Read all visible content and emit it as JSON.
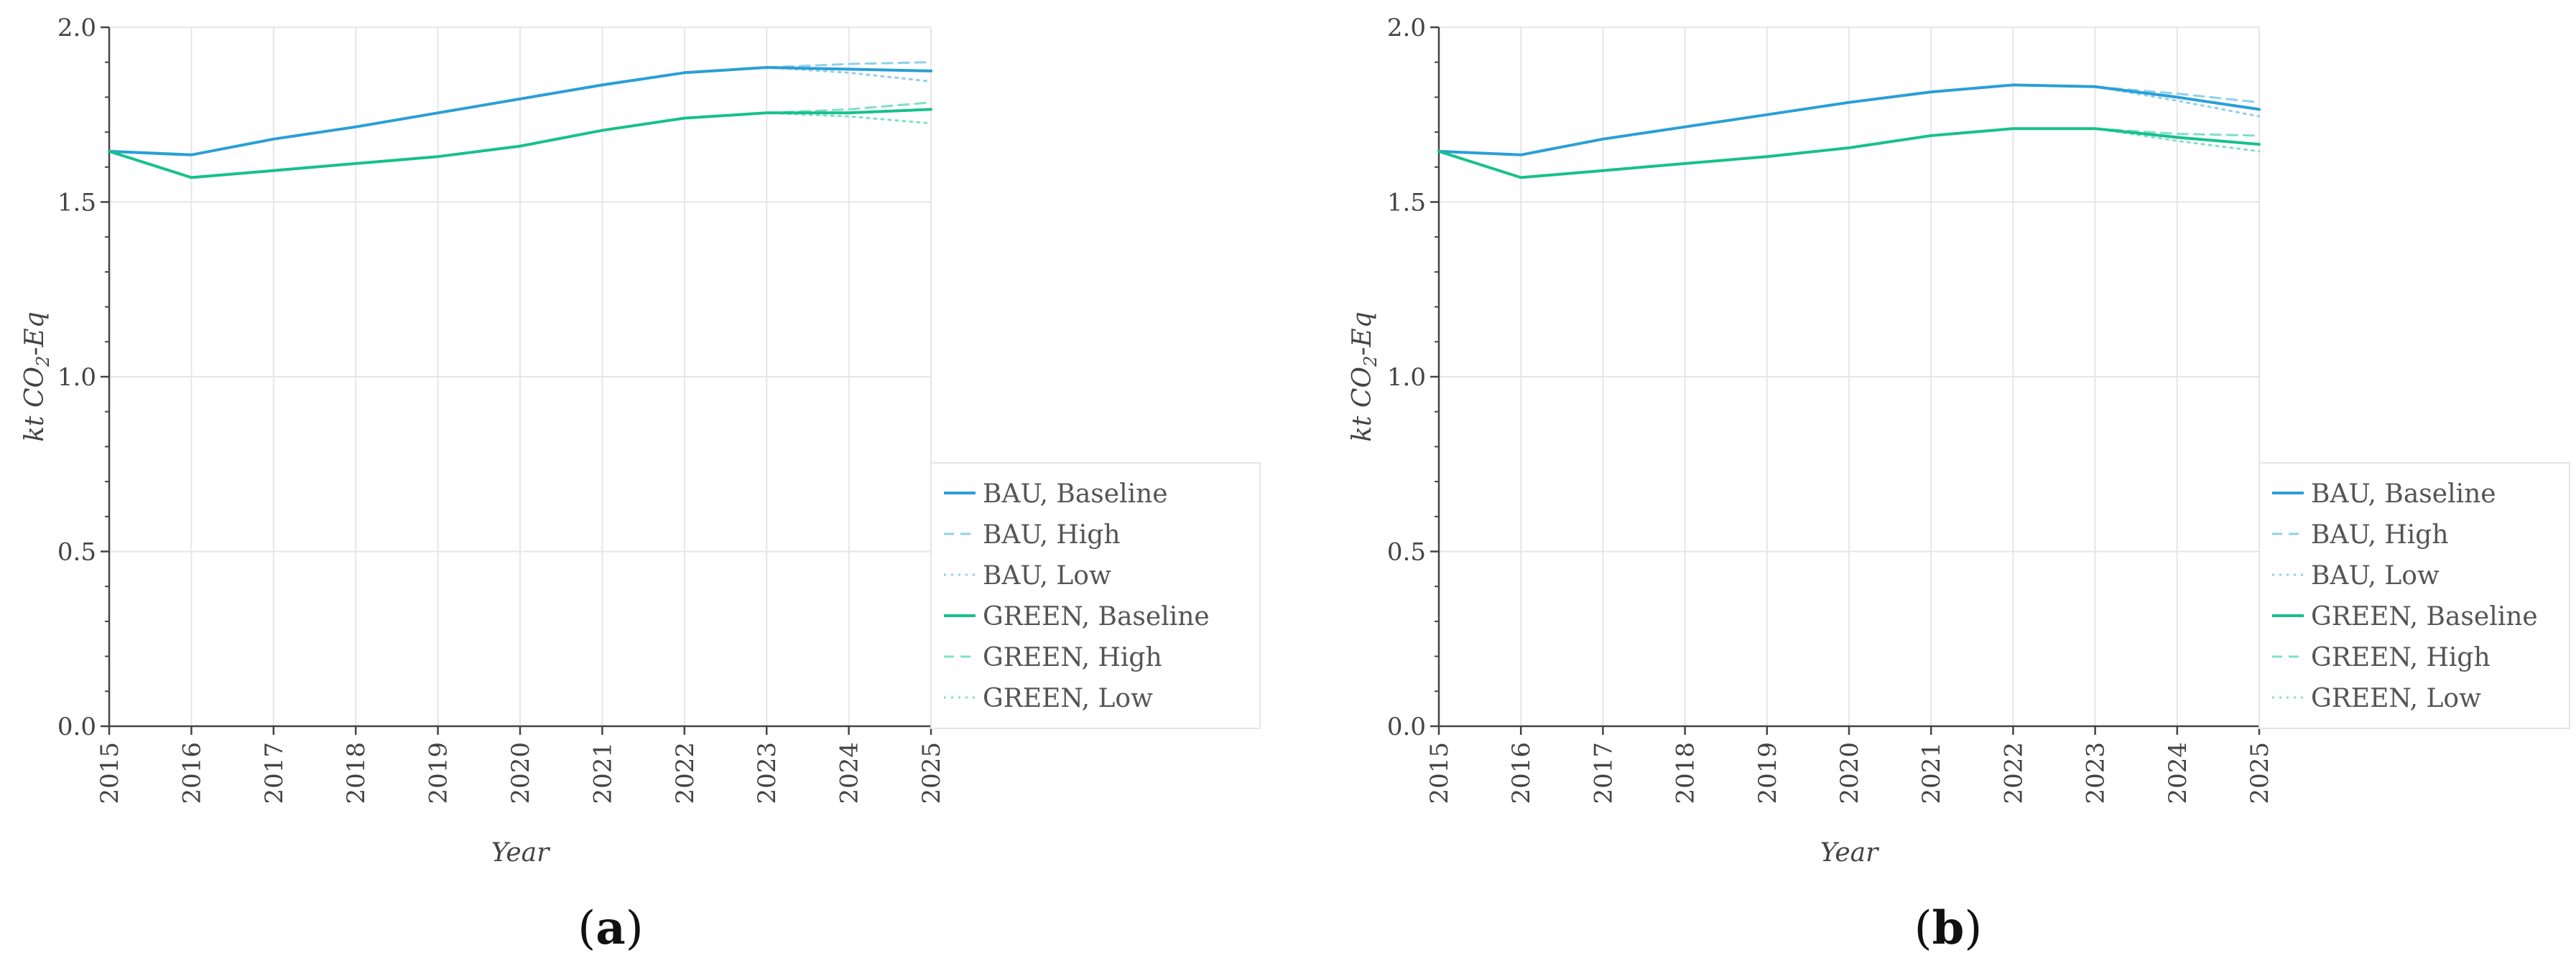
{
  "figure": {
    "panel_labels": [
      {
        "open": "(",
        "letter": "a",
        "close": ")"
      },
      {
        "open": "(",
        "letter": "b",
        "close": ")"
      }
    ]
  },
  "colors": {
    "bau": "#2a9fd6",
    "bau_light": "#8fd0ea",
    "green": "#18c08c",
    "green_light": "#7fe0c8",
    "grid": "#e6e6e6",
    "axis": "#444444"
  },
  "chart_data": [
    {
      "type": "line",
      "panel": "a",
      "title": "",
      "xlabel": "Year",
      "ylabel_parts": {
        "prefix": "kt CO",
        "sub": "2",
        "suffix": "-Eq"
      },
      "x": [
        2015,
        2016,
        2017,
        2018,
        2019,
        2020,
        2021,
        2022,
        2023,
        2024,
        2025
      ],
      "xticks": [
        "2015",
        "2016",
        "2017",
        "2018",
        "2019",
        "2020",
        "2021",
        "2022",
        "2023",
        "2024",
        "2025"
      ],
      "ylim": [
        0.0,
        2.0
      ],
      "yticks": [
        "0.0",
        "0.5",
        "1.0",
        "1.5",
        "2.0"
      ],
      "yticks_values": [
        0.0,
        0.5,
        1.0,
        1.5,
        2.0
      ],
      "grid": true,
      "legend_position": "lower-right outside",
      "series": [
        {
          "name": "BAU, Baseline",
          "group": "bau",
          "style": "solid",
          "x": [
            2015,
            2016,
            2017,
            2018,
            2019,
            2020,
            2021,
            2022,
            2023,
            2024,
            2025
          ],
          "values": [
            1.645,
            1.635,
            1.68,
            1.715,
            1.755,
            1.795,
            1.835,
            1.87,
            1.885,
            1.88,
            1.875
          ]
        },
        {
          "name": "BAU, High",
          "group": "bau",
          "style": "dashed",
          "x": [
            2023,
            2024,
            2025
          ],
          "values": [
            1.885,
            1.895,
            1.9
          ]
        },
        {
          "name": "BAU, Low",
          "group": "bau",
          "style": "dotted",
          "x": [
            2023,
            2024,
            2025
          ],
          "values": [
            1.885,
            1.87,
            1.845
          ]
        },
        {
          "name": "GREEN, Baseline",
          "group": "green",
          "style": "solid",
          "x": [
            2015,
            2016,
            2017,
            2018,
            2019,
            2020,
            2021,
            2022,
            2023,
            2024,
            2025
          ],
          "values": [
            1.645,
            1.57,
            1.59,
            1.61,
            1.63,
            1.66,
            1.705,
            1.74,
            1.755,
            1.755,
            1.765
          ]
        },
        {
          "name": "GREEN, High",
          "group": "green",
          "style": "dashed",
          "x": [
            2023,
            2024,
            2025
          ],
          "values": [
            1.755,
            1.765,
            1.785
          ]
        },
        {
          "name": "GREEN, Low",
          "group": "green",
          "style": "dotted",
          "x": [
            2023,
            2024,
            2025
          ],
          "values": [
            1.755,
            1.745,
            1.725
          ]
        }
      ]
    },
    {
      "type": "line",
      "panel": "b",
      "title": "",
      "xlabel": "Year",
      "ylabel_parts": {
        "prefix": "kt CO",
        "sub": "2",
        "suffix": "-Eq"
      },
      "x": [
        2015,
        2016,
        2017,
        2018,
        2019,
        2020,
        2021,
        2022,
        2023,
        2024,
        2025
      ],
      "xticks": [
        "2015",
        "2016",
        "2017",
        "2018",
        "2019",
        "2020",
        "2021",
        "2022",
        "2023",
        "2024",
        "2025"
      ],
      "ylim": [
        0.0,
        2.0
      ],
      "yticks": [
        "0.0",
        "0.5",
        "1.0",
        "1.5",
        "2.0"
      ],
      "yticks_values": [
        0.0,
        0.5,
        1.0,
        1.5,
        2.0
      ],
      "grid": true,
      "legend_position": "lower-right outside",
      "series": [
        {
          "name": "BAU, Baseline",
          "group": "bau",
          "style": "solid",
          "x": [
            2015,
            2016,
            2017,
            2018,
            2019,
            2020,
            2021,
            2022,
            2023,
            2024,
            2025
          ],
          "values": [
            1.645,
            1.635,
            1.68,
            1.715,
            1.75,
            1.785,
            1.815,
            1.835,
            1.83,
            1.8,
            1.765
          ]
        },
        {
          "name": "BAU, High",
          "group": "bau",
          "style": "dashed",
          "x": [
            2023,
            2024,
            2025
          ],
          "values": [
            1.83,
            1.81,
            1.785
          ]
        },
        {
          "name": "BAU, Low",
          "group": "bau",
          "style": "dotted",
          "x": [
            2023,
            2024,
            2025
          ],
          "values": [
            1.83,
            1.79,
            1.745
          ]
        },
        {
          "name": "GREEN, Baseline",
          "group": "green",
          "style": "solid",
          "x": [
            2015,
            2016,
            2017,
            2018,
            2019,
            2020,
            2021,
            2022,
            2023,
            2024,
            2025
          ],
          "values": [
            1.645,
            1.57,
            1.59,
            1.61,
            1.63,
            1.655,
            1.69,
            1.71,
            1.71,
            1.685,
            1.665
          ]
        },
        {
          "name": "GREEN, High",
          "group": "green",
          "style": "dashed",
          "x": [
            2023,
            2024,
            2025
          ],
          "values": [
            1.71,
            1.695,
            1.69
          ]
        },
        {
          "name": "GREEN, Low",
          "group": "green",
          "style": "dotted",
          "x": [
            2023,
            2024,
            2025
          ],
          "values": [
            1.71,
            1.675,
            1.645
          ]
        }
      ]
    }
  ]
}
